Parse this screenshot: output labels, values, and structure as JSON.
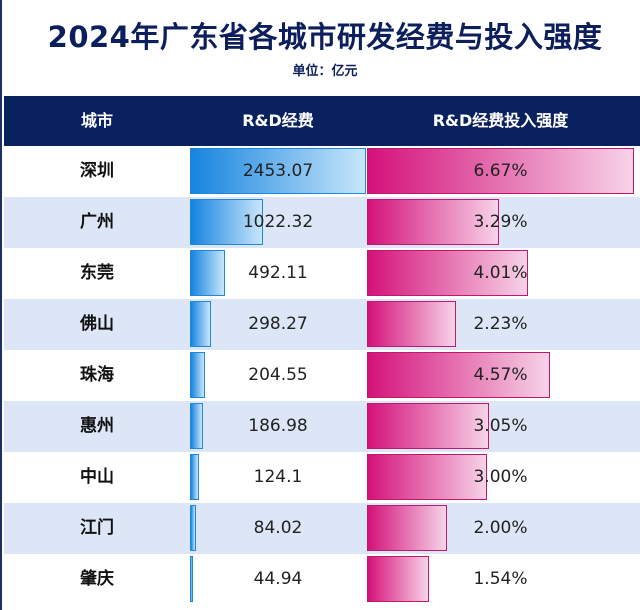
{
  "title": "2024年广东省各城市研发经费与投入强度",
  "unit": "单位：亿元",
  "chart_data": {
    "type": "table",
    "title": "2024年广东省各城市研发经费与投入强度",
    "subtitle": "单位：亿元",
    "columns": [
      "城市",
      "R&D经费",
      "R&D经费投入强度"
    ],
    "rows": [
      {
        "city": "深圳",
        "rd": 2453.07,
        "rd_label": "2453.07",
        "intensity": 6.67,
        "intensity_label": "6.67%"
      },
      {
        "city": "广州",
        "rd": 1022.32,
        "rd_label": "1022.32",
        "intensity": 3.29,
        "intensity_label": "3.29%"
      },
      {
        "city": "东莞",
        "rd": 492.11,
        "rd_label": "492.11",
        "intensity": 4.01,
        "intensity_label": "4.01%"
      },
      {
        "city": "佛山",
        "rd": 298.27,
        "rd_label": "298.27",
        "intensity": 2.23,
        "intensity_label": "2.23%"
      },
      {
        "city": "珠海",
        "rd": 204.55,
        "rd_label": "204.55",
        "intensity": 4.57,
        "intensity_label": "4.57%"
      },
      {
        "city": "惠州",
        "rd": 186.98,
        "rd_label": "186.98",
        "intensity": 3.05,
        "intensity_label": "3.05%"
      },
      {
        "city": "中山",
        "rd": 124.1,
        "rd_label": "124.1",
        "intensity": 3.0,
        "intensity_label": "3.00%"
      },
      {
        "city": "江门",
        "rd": 84.02,
        "rd_label": "84.02",
        "intensity": 2.0,
        "intensity_label": "2.00%"
      },
      {
        "city": "肇庆",
        "rd": 44.94,
        "rd_label": "44.94",
        "intensity": 1.54,
        "intensity_label": "1.54%"
      }
    ],
    "rd_max": 2453.07,
    "intensity_max": 6.67,
    "colors": {
      "header": "#0a2160",
      "title": "#0c1f5c",
      "rd_bar": "#1684e0",
      "intensity_bar": "#d4127a",
      "alt_row": "#dce6f7"
    }
  }
}
